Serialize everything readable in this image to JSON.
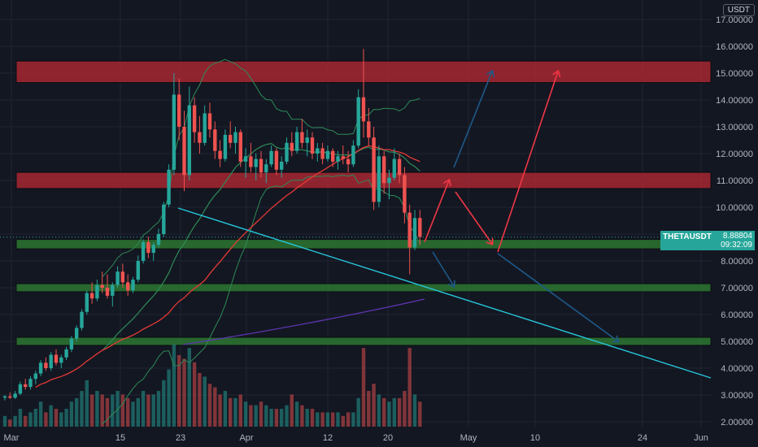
{
  "quote_currency": "USDT",
  "symbol": "THETAUSDT",
  "last_price": "8.88804",
  "countdown": "09:32:09",
  "colors": {
    "background": "#131722",
    "bull": "#26a69a",
    "bear": "#ef5350",
    "resistance_zone": "#b22833",
    "support_zone": "#2e7d32",
    "trendline": "#26c6da",
    "arrow_up_red": "#f23645",
    "arrow_blue": "#1e5a8a",
    "ma_red": "#e53935",
    "ma_green": "#2e8b57",
    "ma_purple": "#5e35b1"
  },
  "chart_data": {
    "type": "candlestick",
    "title": "",
    "xlabel": "",
    "ylabel": "",
    "ylim": [
      1.8,
      17.4
    ],
    "y_ticks": [
      "2.00000",
      "3.00000",
      "4.00000",
      "5.00000",
      "6.00000",
      "7.00000",
      "8.00000",
      "9.00000",
      "10.00000",
      "11.00000",
      "12.00000",
      "13.00000",
      "14.00000",
      "15.00000",
      "16.00000",
      "17.00000"
    ],
    "x_ticks": [
      "Mar",
      "15",
      "23",
      "Apr",
      "12",
      "20",
      "May",
      "10",
      "24",
      "Jun"
    ],
    "zones": [
      {
        "kind": "resistance",
        "from": 14.65,
        "to": 15.45
      },
      {
        "kind": "resistance",
        "from": 10.7,
        "to": 11.3
      },
      {
        "kind": "support",
        "from": 8.45,
        "to": 8.8
      },
      {
        "kind": "support",
        "from": 6.85,
        "to": 7.15
      },
      {
        "kind": "support",
        "from": 4.85,
        "to": 5.15
      }
    ],
    "candles": [
      [
        2.9,
        3.0,
        2.8,
        2.95
      ],
      [
        2.95,
        3.1,
        2.85,
        2.9
      ],
      [
        2.9,
        3.15,
        2.85,
        3.05
      ],
      [
        3.05,
        3.5,
        3.0,
        3.4
      ],
      [
        3.4,
        3.6,
        3.2,
        3.3
      ],
      [
        3.3,
        3.7,
        3.2,
        3.6
      ],
      [
        3.6,
        3.9,
        3.4,
        3.8
      ],
      [
        3.8,
        4.3,
        3.7,
        4.2
      ],
      [
        4.2,
        4.4,
        3.9,
        4.0
      ],
      [
        4.0,
        4.6,
        3.9,
        4.5
      ],
      [
        4.5,
        4.7,
        4.1,
        4.2
      ],
      [
        4.2,
        4.5,
        4.0,
        4.4
      ],
      [
        4.4,
        4.8,
        4.3,
        4.7
      ],
      [
        4.7,
        5.2,
        4.6,
        5.1
      ],
      [
        5.1,
        5.6,
        5.0,
        5.5
      ],
      [
        5.5,
        6.2,
        5.4,
        6.1
      ],
      [
        6.1,
        6.9,
        6.0,
        6.8
      ],
      [
        6.8,
        7.2,
        6.4,
        6.6
      ],
      [
        6.6,
        7.3,
        6.5,
        7.1
      ],
      [
        7.1,
        7.6,
        6.8,
        7.0
      ],
      [
        7.0,
        7.5,
        6.6,
        6.7
      ],
      [
        6.7,
        7.2,
        6.3,
        7.1
      ],
      [
        7.1,
        7.8,
        7.0,
        7.6
      ],
      [
        7.6,
        7.9,
        7.0,
        7.2
      ],
      [
        7.2,
        7.5,
        6.7,
        6.9
      ],
      [
        6.9,
        7.4,
        6.8,
        7.3
      ],
      [
        7.3,
        8.2,
        7.2,
        8.0
      ],
      [
        8.0,
        8.8,
        7.9,
        8.7
      ],
      [
        8.7,
        8.9,
        8.1,
        8.3
      ],
      [
        8.3,
        8.7,
        8.0,
        8.6
      ],
      [
        8.6,
        9.2,
        8.5,
        9.0
      ],
      [
        9.0,
        10.2,
        8.9,
        10.1
      ],
      [
        10.1,
        11.6,
        10.0,
        11.4
      ],
      [
        11.4,
        15.0,
        11.2,
        14.2
      ],
      [
        14.2,
        14.8,
        12.5,
        13.0
      ],
      [
        13.0,
        13.6,
        10.6,
        11.2
      ],
      [
        11.2,
        14.5,
        11.0,
        13.8
      ],
      [
        13.8,
        14.1,
        12.4,
        12.8
      ],
      [
        12.8,
        13.4,
        12.0,
        12.4
      ],
      [
        12.4,
        13.8,
        12.3,
        13.5
      ],
      [
        13.5,
        13.9,
        12.6,
        12.9
      ],
      [
        12.9,
        13.2,
        11.8,
        12.1
      ],
      [
        12.1,
        12.5,
        11.5,
        11.8
      ],
      [
        11.8,
        12.9,
        11.7,
        12.7
      ],
      [
        12.7,
        13.2,
        12.2,
        12.4
      ],
      [
        12.4,
        13.0,
        12.0,
        12.8
      ],
      [
        12.8,
        12.9,
        11.5,
        11.7
      ],
      [
        11.7,
        12.2,
        11.1,
        11.9
      ],
      [
        11.9,
        12.4,
        11.3,
        11.5
      ],
      [
        11.5,
        12.0,
        11.0,
        11.8
      ],
      [
        11.8,
        12.1,
        11.1,
        11.3
      ],
      [
        11.3,
        11.8,
        10.9,
        11.6
      ],
      [
        11.6,
        12.3,
        11.5,
        12.1
      ],
      [
        12.1,
        12.2,
        11.2,
        11.4
      ],
      [
        11.4,
        11.9,
        11.1,
        11.7
      ],
      [
        11.7,
        12.6,
        11.6,
        12.4
      ],
      [
        12.4,
        12.8,
        11.9,
        12.1
      ],
      [
        12.1,
        13.0,
        12.0,
        12.8
      ],
      [
        12.8,
        13.3,
        12.2,
        12.4
      ],
      [
        12.4,
        12.9,
        11.9,
        12.6
      ],
      [
        12.6,
        12.8,
        11.8,
        12.0
      ],
      [
        12.0,
        12.4,
        11.7,
        12.2
      ],
      [
        12.2,
        12.4,
        11.6,
        11.8
      ],
      [
        11.8,
        12.3,
        11.7,
        12.1
      ],
      [
        12.1,
        12.2,
        11.5,
        11.7
      ],
      [
        11.7,
        12.1,
        11.4,
        11.9
      ],
      [
        11.9,
        12.3,
        11.6,
        11.8
      ],
      [
        11.8,
        12.1,
        11.3,
        11.6
      ],
      [
        11.6,
        12.5,
        11.5,
        12.3
      ],
      [
        12.3,
        14.4,
        12.2,
        14.1
      ],
      [
        14.1,
        15.9,
        12.6,
        13.2
      ],
      [
        13.2,
        13.7,
        12.3,
        12.6
      ],
      [
        12.6,
        13.0,
        9.9,
        10.2
      ],
      [
        10.2,
        12.3,
        10.0,
        11.9
      ],
      [
        11.9,
        12.1,
        10.5,
        10.9
      ],
      [
        10.9,
        11.4,
        10.3,
        11.1
      ],
      [
        11.1,
        12.2,
        11.0,
        11.8
      ],
      [
        11.8,
        12.0,
        10.9,
        11.2
      ],
      [
        11.2,
        11.5,
        9.4,
        9.8
      ],
      [
        9.8,
        10.1,
        7.5,
        8.5
      ],
      [
        8.5,
        9.9,
        8.4,
        9.6
      ],
      [
        9.6,
        9.9,
        8.6,
        8.89
      ]
    ],
    "volumes": [
      0.03,
      0.02,
      0.03,
      0.05,
      0.03,
      0.04,
      0.05,
      0.07,
      0.04,
      0.06,
      0.05,
      0.04,
      0.05,
      0.07,
      0.08,
      0.1,
      0.13,
      0.09,
      0.1,
      0.09,
      0.08,
      0.09,
      0.1,
      0.09,
      0.08,
      0.07,
      0.08,
      0.1,
      0.09,
      0.09,
      0.1,
      0.13,
      0.16,
      0.23,
      0.2,
      0.19,
      0.22,
      0.18,
      0.15,
      0.14,
      0.12,
      0.11,
      0.09,
      0.1,
      0.08,
      0.08,
      0.09,
      0.07,
      0.06,
      0.06,
      0.07,
      0.06,
      0.05,
      0.05,
      0.05,
      0.06,
      0.09,
      0.07,
      0.06,
      0.05,
      0.05,
      0.04,
      0.04,
      0.04,
      0.04,
      0.04,
      0.03,
      0.04,
      0.04,
      0.08,
      0.22,
      0.1,
      0.12,
      0.09,
      0.08,
      0.07,
      0.08,
      0.08,
      0.1,
      0.22,
      0.09,
      0.07
    ]
  }
}
